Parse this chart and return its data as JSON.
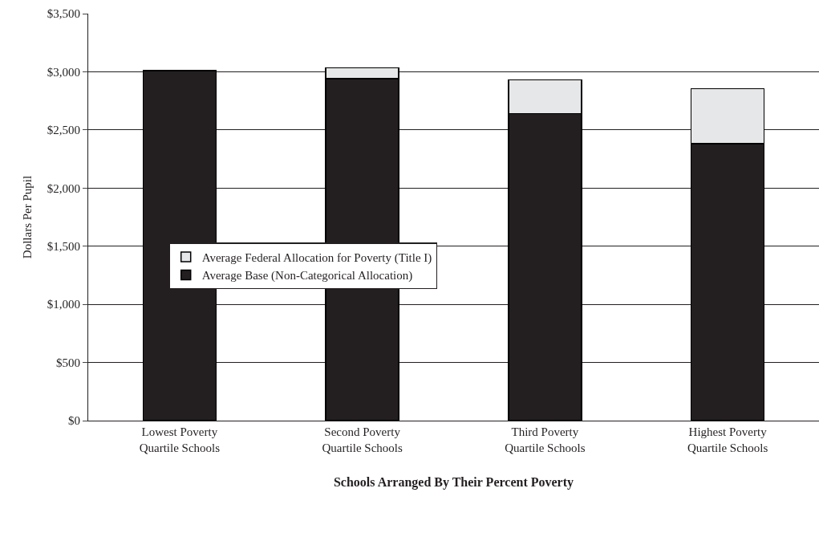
{
  "chart_data": {
    "type": "bar",
    "stacked": true,
    "xlabel": "Schools Arranged By Their Percent Poverty",
    "ylabel": "Dollars Per Pupil",
    "categories": [
      "Lowest Poverty\nQuartile Schools",
      "Second Poverty\nQuartile Schools",
      "Third Poverty\nQuartile Schools",
      "Highest Poverty\nQuartile Schools"
    ],
    "series": [
      {
        "name": "Average Base (Non-Categorical Allocation)",
        "color": "#231f20",
        "values": [
          3010,
          2940,
          2640,
          2380
        ]
      },
      {
        "name": "Average Federal Allocation for Poverty (Title I)",
        "color": "#e6e7e8",
        "values": [
          null,
          95,
          290,
          475
        ]
      }
    ],
    "ylim": [
      0,
      3500
    ],
    "yticks": [
      {
        "value": 0,
        "label": "$0"
      },
      {
        "value": 500,
        "label": "$500"
      },
      {
        "value": 1000,
        "label": "$1,000"
      },
      {
        "value": 1500,
        "label": "$1,500"
      },
      {
        "value": 2000,
        "label": "$2,000"
      },
      {
        "value": 2500,
        "label": "$2,500"
      },
      {
        "value": 3000,
        "label": "$3,000"
      },
      {
        "value": 3500,
        "label": "$3,500"
      }
    ],
    "grid": "y",
    "legend": "center left"
  }
}
